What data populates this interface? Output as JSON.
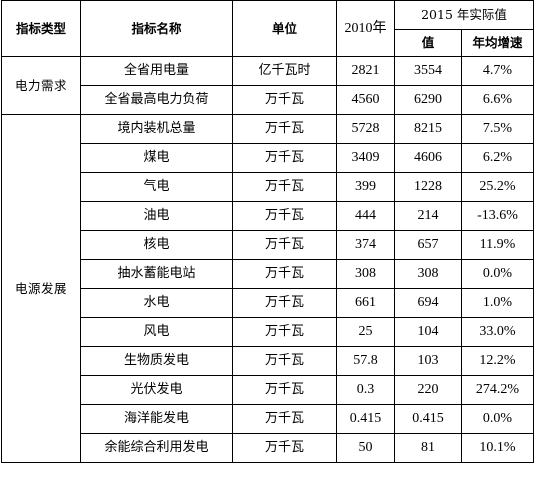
{
  "headers": {
    "category": "指标类型",
    "name": "指标名称",
    "unit": "单位",
    "y2010": "2010年",
    "y2015": "2015 年实际值",
    "value": "值",
    "growth": "年均增速"
  },
  "groups": [
    {
      "category": "电力需求",
      "rows": [
        {
          "name": "全省用电量",
          "unit": "亿千瓦时",
          "y2010": "2821",
          "y2015": "3554",
          "growth": "4.7%"
        },
        {
          "name": "全省最高电力负荷",
          "unit": "万千瓦",
          "y2010": "4560",
          "y2015": "6290",
          "growth": "6.6%"
        }
      ]
    },
    {
      "category": "电源发展",
      "rows": [
        {
          "name": "境内装机总量",
          "unit": "万千瓦",
          "y2010": "5728",
          "y2015": "8215",
          "growth": "7.5%"
        },
        {
          "name": "煤电",
          "unit": "万千瓦",
          "y2010": "3409",
          "y2015": "4606",
          "growth": "6.2%"
        },
        {
          "name": "气电",
          "unit": "万千瓦",
          "y2010": "399",
          "y2015": "1228",
          "growth": "25.2%"
        },
        {
          "name": "油电",
          "unit": "万千瓦",
          "y2010": "444",
          "y2015": "214",
          "growth": "-13.6%"
        },
        {
          "name": "核电",
          "unit": "万千瓦",
          "y2010": "374",
          "y2015": "657",
          "growth": "11.9%"
        },
        {
          "name": "抽水蓄能电站",
          "unit": "万千瓦",
          "y2010": "308",
          "y2015": "308",
          "growth": "0.0%"
        },
        {
          "name": "水电",
          "unit": "万千瓦",
          "y2010": "661",
          "y2015": "694",
          "growth": "1.0%"
        },
        {
          "name": "风电",
          "unit": "万千瓦",
          "y2010": "25",
          "y2015": "104",
          "growth": "33.0%"
        },
        {
          "name": "生物质发电",
          "unit": "万千瓦",
          "y2010": "57.8",
          "y2015": "103",
          "growth": "12.2%"
        },
        {
          "name": "光伏发电",
          "unit": "万千瓦",
          "y2010": "0.3",
          "y2015": "220",
          "growth": "274.2%"
        },
        {
          "name": "海洋能发电",
          "unit": "万千瓦",
          "y2010": "0.415",
          "y2015": "0.415",
          "growth": "0.0%"
        },
        {
          "name": "余能综合利用发电",
          "unit": "万千瓦",
          "y2010": "50",
          "y2015": "81",
          "growth": "10.1%"
        }
      ]
    }
  ]
}
